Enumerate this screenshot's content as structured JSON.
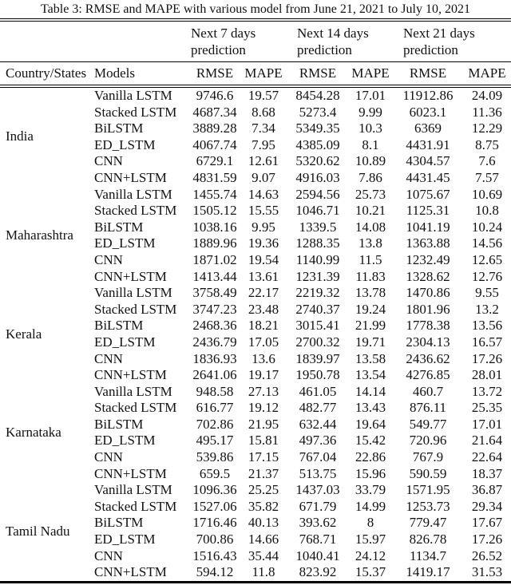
{
  "title": "Table 3: RMSE and MAPE with various model from June 21, 2021 to July 10, 2021",
  "table": {
    "group_headers": [
      {
        "label": "Next 7 days prediction"
      },
      {
        "label": "Next 14 days prediction"
      },
      {
        "label": "Next 21 days prediction"
      }
    ],
    "column_headers": [
      "Country/States",
      "Models",
      "RMSE",
      "MAPE",
      "RMSE",
      "MAPE",
      "RMSE",
      "MAPE"
    ],
    "groups": [
      {
        "region": "India",
        "rows": [
          {
            "model": "Vanilla LSTM",
            "values": [
              "9746.6",
              "19.57",
              "8454.28",
              "17.01",
              "11912.86",
              "24.09"
            ]
          },
          {
            "model": "Stacked LSTM",
            "values": [
              "4687.34",
              "8.68",
              "5273.4",
              "9.99",
              "6023.1",
              "11.36"
            ]
          },
          {
            "model": "BiLSTM",
            "values": [
              "3889.28",
              "7.34",
              "5349.35",
              "10.3",
              "6369",
              "12.29"
            ]
          },
          {
            "model": "ED_LSTM",
            "values": [
              "4067.74",
              "7.95",
              "4385.09",
              "8.1",
              "4431.91",
              "8.75"
            ]
          },
          {
            "model": "CNN",
            "values": [
              "6729.1",
              "12.61",
              "5320.62",
              "10.89",
              "4304.57",
              "7.6"
            ]
          },
          {
            "model": "CNN+LSTM",
            "values": [
              "4831.59",
              "9.07",
              "4916.03",
              "7.86",
              "4431.45",
              "7.57"
            ]
          }
        ]
      },
      {
        "region": "Maharashtra",
        "rows": [
          {
            "model": "Vanilla LSTM",
            "values": [
              "1455.74",
              "14.63",
              "2594.56",
              "25.73",
              "1075.67",
              "10.69"
            ]
          },
          {
            "model": "Stacked LSTM",
            "values": [
              "1505.12",
              "15.55",
              "1046.71",
              "10.21",
              "1125.31",
              "10.8"
            ]
          },
          {
            "model": "BiLSTM",
            "values": [
              "1038.16",
              "9.95",
              "1339.5",
              "14.08",
              "1041.19",
              "10.24"
            ]
          },
          {
            "model": "ED_LSTM",
            "values": [
              "1889.96",
              "19.36",
              "1288.35",
              "13.8",
              "1363.88",
              "14.56"
            ]
          },
          {
            "model": "CNN",
            "values": [
              "1871.02",
              "19.54",
              "1140.99",
              "11.5",
              "1232.49",
              "12.65"
            ]
          },
          {
            "model": "CNN+LSTM",
            "values": [
              "1413.44",
              "13.61",
              "1231.39",
              "11.83",
              "1328.62",
              "12.76"
            ]
          }
        ]
      },
      {
        "region": "Kerala",
        "rows": [
          {
            "model": "Vanilla LSTM",
            "values": [
              "3758.49",
              "22.17",
              "2219.32",
              "13.78",
              "1470.86",
              "9.55"
            ]
          },
          {
            "model": "Stacked LSTM",
            "values": [
              "3747.23",
              "23.48",
              "2740.37",
              "19.24",
              "1801.96",
              "13.2"
            ]
          },
          {
            "model": "BiLSTM",
            "values": [
              "2468.36",
              "18.21",
              "3015.41",
              "21.99",
              "1778.38",
              "13.56"
            ]
          },
          {
            "model": "ED_LSTM",
            "values": [
              "2436.79",
              "17.05",
              "2700.32",
              "19.71",
              "2304.13",
              "16.57"
            ]
          },
          {
            "model": "CNN",
            "values": [
              "1836.93",
              "13.6",
              "1839.97",
              "13.58",
              "2436.62",
              "17.26"
            ]
          },
          {
            "model": "CNN+LSTM",
            "values": [
              "2641.06",
              "19.17",
              "1950.78",
              "13.54",
              "4276.85",
              "28.01"
            ]
          }
        ]
      },
      {
        "region": "Karnataka",
        "rows": [
          {
            "model": "Vanilla LSTM",
            "values": [
              "948.58",
              "27.13",
              "461.05",
              "14.14",
              "460.7",
              "13.72"
            ]
          },
          {
            "model": "Stacked LSTM",
            "values": [
              "616.77",
              "19.12",
              "482.77",
              "13.43",
              "876.11",
              "25.35"
            ]
          },
          {
            "model": "BiLSTM",
            "values": [
              "702.86",
              "21.95",
              "632.44",
              "19.64",
              "549.77",
              "17.01"
            ]
          },
          {
            "model": "ED_LSTM",
            "values": [
              "495.17",
              "15.81",
              "497.36",
              "15.42",
              "720.96",
              "21.64"
            ]
          },
          {
            "model": "CNN",
            "values": [
              "539.86",
              "17.15",
              "767.04",
              "22.86",
              "767.9",
              "22.64"
            ]
          },
          {
            "model": "CNN+LSTM",
            "values": [
              "659.5",
              "21.37",
              "513.75",
              "15.96",
              "590.59",
              "18.37"
            ]
          }
        ]
      },
      {
        "region": "Tamil Nadu",
        "rows": [
          {
            "model": "Vanilla LSTM",
            "values": [
              "1096.36",
              "25.25",
              "1437.03",
              "33.79",
              "1571.95",
              "36.87"
            ]
          },
          {
            "model": "Stacked LSTM",
            "values": [
              "1527.06",
              "35.82",
              "671.79",
              "14.99",
              "1253.73",
              "29.34"
            ]
          },
          {
            "model": "BiLSTM",
            "values": [
              "1716.46",
              "40.13",
              "393.62",
              "8",
              "779.47",
              "17.67"
            ]
          },
          {
            "model": "ED_LSTM",
            "values": [
              "700.86",
              "14.66",
              "768.71",
              "15.97",
              "826.78",
              "17.26"
            ]
          },
          {
            "model": "CNN",
            "values": [
              "1516.43",
              "35.44",
              "1040.41",
              "24.12",
              "1134.7",
              "26.52"
            ]
          },
          {
            "model": "CNN+LSTM",
            "values": [
              "594.12",
              "11.8",
              "823.92",
              "15.37",
              "1419.17",
              "31.53"
            ]
          }
        ]
      }
    ]
  }
}
